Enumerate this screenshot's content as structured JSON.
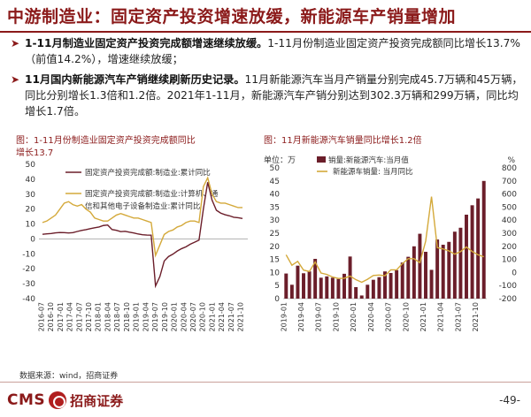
{
  "header": {
    "title": "中游制造业：固定资产投资增速放缓，新能源车产销量增加"
  },
  "bullets": [
    {
      "mark": "➤",
      "bold": "1-11月制造业固定资产投资完成额增速继续放缓。",
      "text": "1-11月份制造业固定资产投资完成额同比增长13.7%（前值14.2%），增速继续放缓；"
    },
    {
      "mark": "➤",
      "bold": "11月国内新能源汽车产销继续刷新历史记录。",
      "text": "11月新能源汽车当月产销量分别完成45.7万辆和45万辆，同比分别增长1.3倍和1.2倍。2021年1-11月，新能源汽车产销分别达到302.3万辆和299万辆，同比均增长1.7倍。"
    }
  ],
  "footer": {
    "source": "数据来源：wind，招商证券",
    "logo_en": "CMS",
    "logo_cn": "招商证券",
    "page": "-49-"
  },
  "colors": {
    "brand": "#8b1a1a",
    "series_a": "#6b1e2a",
    "series_b": "#d4a93a"
  },
  "chart_data": [
    {
      "type": "line",
      "title": "图：1-11月份制造业固定资产投资完成额同比增长13.7",
      "ylim": [
        -40,
        50
      ],
      "yticks": [
        -40,
        -30,
        -20,
        -10,
        0,
        10,
        20,
        30,
        40,
        50
      ],
      "x_ticks": [
        "2016-07",
        "2016-10",
        "2017-01",
        "2017-04",
        "2017-07",
        "2017-10",
        "2018-01",
        "2018-04",
        "2018-07",
        "2018-10",
        "2019-01",
        "2019-04",
        "2019-07",
        "2019-10",
        "2020-01",
        "2020-04",
        "2020-07",
        "2020-10",
        "2021-01",
        "2021-04",
        "2021-07",
        "2021-10"
      ],
      "legend": [
        "固定资产投资完成额:制造业:累计同比",
        "固定资产投资完成额:制造业:计算机、通",
        "信和其他电子设备制造业:累计同比"
      ],
      "series": [
        {
          "name": "固定资产投资完成额:制造业:累计同比",
          "values": [
            3.1,
            3.4,
            3.6,
            4.1,
            4.3,
            4.2,
            4.0,
            4.2,
            5.0,
            5.7,
            6.2,
            6.9,
            7.5,
            8.0,
            9.0,
            9.3,
            6.3,
            5.8,
            4.9,
            5.1,
            4.5,
            4.0,
            3.3,
            2.8,
            2.6,
            2.5,
            -31.5,
            -25.2,
            -14.8,
            -11.8,
            -10.2,
            -8.1,
            -6.5,
            -5.3,
            -3.5,
            -2.2,
            -0.8,
            20,
            38.0,
            26,
            19.2,
            17.3,
            16.2,
            15.5,
            14.5,
            14.2,
            13.7
          ]
        },
        {
          "name": "固定资产投资完成额:制造业:计算机、通信和其他电子设备制造业:累计同比",
          "values": [
            11,
            12,
            14,
            16,
            20,
            24,
            25,
            23,
            22,
            23,
            20,
            18,
            14,
            13,
            12,
            12,
            14,
            16,
            17,
            16,
            15,
            14,
            14,
            13,
            12,
            11,
            -11,
            -4,
            3,
            5,
            6,
            8,
            9,
            11,
            12,
            12,
            11,
            35,
            41,
            30,
            25,
            24,
            24,
            23,
            22,
            21,
            21
          ]
        }
      ]
    },
    {
      "type": "bar+line",
      "title": "图：11月新能源汽车销量同比增长1.2倍",
      "y_left_label": "单位：万",
      "y_right_label": "%",
      "ylim_left": [
        0,
        50
      ],
      "yticks_left": [
        0,
        5,
        10,
        15,
        20,
        25,
        30,
        35,
        40,
        45,
        50
      ],
      "ylim_right": [
        -200,
        800
      ],
      "yticks_right": [
        -200,
        -100,
        0,
        100,
        200,
        300,
        400,
        500,
        600,
        700,
        800
      ],
      "x_ticks": [
        "2019-01",
        "2019-04",
        "2019-07",
        "2019-10",
        "2020-01",
        "2020-04",
        "2020-07",
        "2020-10",
        "2021-01",
        "2021-04",
        "2021-07",
        "2021-10"
      ],
      "legend": [
        "销量:新能源汽车:当月值",
        "新能源车销量: 当月同比"
      ],
      "series": [
        {
          "name": "销量:新能源汽车:当月值",
          "kind": "bar",
          "values": [
            9.6,
            5.3,
            12.6,
            9.7,
            10.4,
            15.2,
            8.0,
            8.5,
            8.0,
            7.5,
            9.5,
            16.1,
            4.4,
            1.2,
            5.3,
            7.2,
            8.2,
            10.4,
            9.8,
            10.9,
            13.8,
            16.0,
            20.0,
            24.8,
            17.9,
            11.0,
            22.6,
            20.6,
            21.7,
            25.6,
            27.1,
            32.1,
            35.7,
            38.3,
            45.0
          ]
        },
        {
          "name": "新能源车销量: 当月同比",
          "kind": "line",
          "values": [
            135,
            55,
            85,
            18,
            7,
            80,
            -4,
            -15,
            -35,
            -46,
            -44,
            -28,
            -55,
            -75,
            -52,
            -23,
            -20,
            -25,
            20,
            20,
            68,
            105,
            105,
            75,
            240,
            580,
            190,
            180,
            165,
            140,
            160,
            195,
            160,
            135,
            120
          ]
        }
      ]
    }
  ]
}
